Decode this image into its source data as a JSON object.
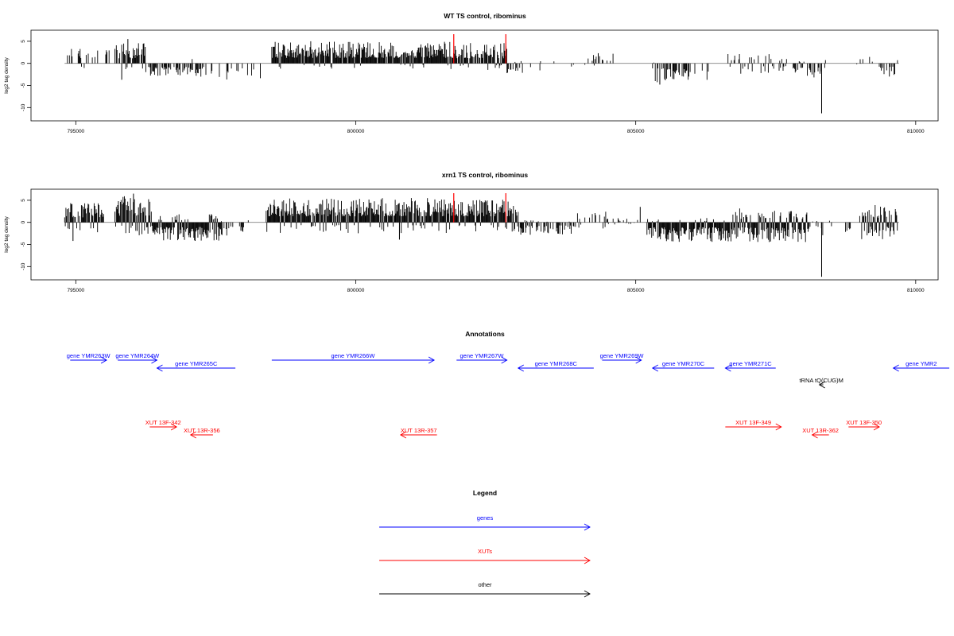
{
  "chart_data": [
    {
      "type": "bar",
      "title": "WT TS control, ribominus",
      "ylabel": "log2 tag density",
      "xlabel": "",
      "xlim": [
        794200,
        810400
      ],
      "ylim": [
        -13,
        7.5
      ],
      "x_ticks": [
        795000,
        800000,
        805000,
        810000
      ],
      "y_ticks": [
        -10,
        -5,
        0,
        5
      ],
      "baseline_extent": [
        794800,
        809700
      ],
      "grid": false,
      "highlight_color": "#ff0000",
      "bar_color": "#000000",
      "highlights": [
        {
          "x": 801750,
          "value": 6.6
        },
        {
          "x": 802680,
          "value": 6.6
        }
      ],
      "notable_bars": [
        {
          "x": 808320,
          "value": -11.3
        },
        {
          "x": 795930,
          "value": 5.5
        },
        {
          "x": 795820,
          "value": -3.7
        },
        {
          "x": 804330,
          "value": 2.3
        },
        {
          "x": 805430,
          "value": -4.8
        }
      ],
      "segments": [
        {
          "from": 794850,
          "to": 795620,
          "density": 0.35,
          "up_max": 3.4,
          "down_max": 1.4,
          "up_bias": 0.9
        },
        {
          "from": 795700,
          "to": 796250,
          "density": 0.8,
          "up_max": 4.6,
          "down_max": 3.2,
          "up_bias": 0.85
        },
        {
          "from": 796250,
          "to": 797300,
          "density": 0.55,
          "up_max": 1.0,
          "down_max": 3.2,
          "up_bias": 0.1
        },
        {
          "from": 797300,
          "to": 798300,
          "density": 0.25,
          "up_max": 0.5,
          "down_max": 3.8,
          "up_bias": 0.05
        },
        {
          "from": 798500,
          "to": 801700,
          "density": 0.95,
          "up_max": 5.0,
          "down_max": 1.2,
          "up_bias": 0.95
        },
        {
          "from": 801700,
          "to": 802700,
          "density": 0.9,
          "up_max": 4.6,
          "down_max": 1.5,
          "up_bias": 0.9
        },
        {
          "from": 802700,
          "to": 803300,
          "density": 0.3,
          "up_max": 0.8,
          "down_max": 2.5,
          "up_bias": 0.15
        },
        {
          "from": 803300,
          "to": 804100,
          "density": 0.1,
          "up_max": 0.5,
          "down_max": 1.2,
          "up_bias": 0.2
        },
        {
          "from": 804150,
          "to": 804600,
          "density": 0.2,
          "up_max": 2.2,
          "down_max": 0.5,
          "up_bias": 0.9
        },
        {
          "from": 805300,
          "to": 806300,
          "density": 0.4,
          "up_max": 0.6,
          "down_max": 4.5,
          "up_bias": 0.05
        },
        {
          "from": 806600,
          "to": 807800,
          "density": 0.35,
          "up_max": 2.2,
          "down_max": 2.5,
          "up_bias": 0.5
        },
        {
          "from": 807800,
          "to": 808400,
          "density": 0.5,
          "up_max": 1.2,
          "down_max": 3.8,
          "up_bias": 0.2
        },
        {
          "from": 808900,
          "to": 809250,
          "density": 0.15,
          "up_max": 1.5,
          "down_max": 0.3,
          "up_bias": 0.9
        },
        {
          "from": 809350,
          "to": 809700,
          "density": 0.4,
          "up_max": 1.0,
          "down_max": 3.0,
          "up_bias": 0.2
        }
      ]
    },
    {
      "type": "bar",
      "title": "xrn1 TS control, ribominus",
      "ylabel": "log2 tag density",
      "xlabel": "",
      "xlim": [
        794200,
        810400
      ],
      "ylim": [
        -13,
        7.5
      ],
      "x_ticks": [
        795000,
        800000,
        805000,
        810000
      ],
      "y_ticks": [
        -10,
        -5,
        0,
        5
      ],
      "baseline_extent": [
        794800,
        809700
      ],
      "grid": false,
      "highlight_color": "#ff0000",
      "bar_color": "#000000",
      "highlights": [
        {
          "x": 801750,
          "value": 6.6
        },
        {
          "x": 802680,
          "value": 6.6
        }
      ],
      "notable_bars": [
        {
          "x": 808320,
          "value": -12.3
        },
        {
          "x": 794950,
          "value": -4.2
        },
        {
          "x": 800780,
          "value": -3.9
        },
        {
          "x": 805080,
          "value": 3.5
        },
        {
          "x": 796030,
          "value": 6.5
        }
      ],
      "segments": [
        {
          "from": 794800,
          "to": 795500,
          "density": 0.8,
          "up_max": 4.5,
          "down_max": 2.5,
          "up_bias": 0.85
        },
        {
          "from": 795700,
          "to": 796400,
          "density": 1.0,
          "up_max": 6.0,
          "down_max": 3.0,
          "up_bias": 0.7
        },
        {
          "from": 796400,
          "to": 797600,
          "density": 1.0,
          "up_max": 2.0,
          "down_max": 4.2,
          "up_bias": 0.15
        },
        {
          "from": 797600,
          "to": 798100,
          "density": 0.4,
          "up_max": 1.0,
          "down_max": 3.0,
          "up_bias": 0.2
        },
        {
          "from": 798400,
          "to": 802900,
          "density": 1.0,
          "up_max": 5.5,
          "down_max": 2.5,
          "up_bias": 0.85
        },
        {
          "from": 802900,
          "to": 803900,
          "density": 0.55,
          "up_max": 0.6,
          "down_max": 2.8,
          "up_bias": 0.1
        },
        {
          "from": 803900,
          "to": 804600,
          "density": 0.35,
          "up_max": 2.8,
          "down_max": 1.5,
          "up_bias": 0.5
        },
        {
          "from": 804600,
          "to": 805100,
          "density": 0.15,
          "up_max": 1.0,
          "down_max": 0.5,
          "up_bias": 0.5
        },
        {
          "from": 805200,
          "to": 806700,
          "density": 0.9,
          "up_max": 1.0,
          "down_max": 4.5,
          "up_bias": 0.08
        },
        {
          "from": 806700,
          "to": 808100,
          "density": 1.0,
          "up_max": 3.2,
          "down_max": 4.5,
          "up_bias": 0.35
        },
        {
          "from": 808100,
          "to": 808900,
          "density": 0.25,
          "up_max": 0.8,
          "down_max": 3.0,
          "up_bias": 0.2
        },
        {
          "from": 809000,
          "to": 809700,
          "density": 0.9,
          "up_max": 4.0,
          "down_max": 3.8,
          "up_bias": 0.4
        }
      ]
    },
    {
      "type": "annotation_track",
      "title": "Annotations",
      "xlim": [
        794200,
        810400
      ],
      "features": [
        {
          "label": "gene YMR263W",
          "start": 794900,
          "end": 795550,
          "strand": "+",
          "color": "#0000ff",
          "row": 0
        },
        {
          "label": "gene YMR264W",
          "start": 795750,
          "end": 796450,
          "strand": "+",
          "color": "#0000ff",
          "row": 0
        },
        {
          "label": "gene YMR265C",
          "start": 796450,
          "end": 797850,
          "strand": "-",
          "color": "#0000ff",
          "row": 1
        },
        {
          "label": "gene YMR266W",
          "start": 798500,
          "end": 801400,
          "strand": "+",
          "color": "#0000ff",
          "row": 0
        },
        {
          "label": "gene YMR267W",
          "start": 801800,
          "end": 802700,
          "strand": "+",
          "color": "#0000ff",
          "row": 0
        },
        {
          "label": "gene YMR268C",
          "start": 802900,
          "end": 804250,
          "strand": "-",
          "color": "#0000ff",
          "row": 1
        },
        {
          "label": "gene YMR269W",
          "start": 804400,
          "end": 805100,
          "strand": "+",
          "color": "#0000ff",
          "row": 0
        },
        {
          "label": "gene YMR270C",
          "start": 805300,
          "end": 806400,
          "strand": "-",
          "color": "#0000ff",
          "row": 1
        },
        {
          "label": "gene YMR271C",
          "start": 806600,
          "end": 807500,
          "strand": "-",
          "color": "#0000ff",
          "row": 1
        },
        {
          "label": "gene YMR2",
          "start": 809600,
          "end": 810600,
          "strand": "-",
          "color": "#0000ff",
          "row": 1
        },
        {
          "label": "tRNA tQ(CUG)M",
          "start": 808280,
          "end": 808350,
          "strand": "-",
          "color": "#000000",
          "row": 2
        },
        {
          "label": "XUT 13F-342",
          "start": 796320,
          "end": 796800,
          "strand": "+",
          "color": "#ff0000",
          "row": 3
        },
        {
          "label": "XUT 13R-356",
          "start": 797050,
          "end": 797450,
          "strand": "-",
          "color": "#ff0000",
          "row": 4
        },
        {
          "label": "XUT 13R-357",
          "start": 800800,
          "end": 801450,
          "strand": "-",
          "color": "#ff0000",
          "row": 4
        },
        {
          "label": "XUT 13F-349",
          "start": 806600,
          "end": 807600,
          "strand": "+",
          "color": "#ff0000",
          "row": 3
        },
        {
          "label": "XUT 13R-362",
          "start": 808150,
          "end": 808450,
          "strand": "-",
          "color": "#ff0000",
          "row": 4
        },
        {
          "label": "XUT 13F-350",
          "start": 808800,
          "end": 809350,
          "strand": "+",
          "color": "#ff0000",
          "row": 3
        }
      ]
    },
    {
      "type": "legend",
      "title": "Legend",
      "items": [
        {
          "label": "genes",
          "color": "#0000ff"
        },
        {
          "label": "XUTs",
          "color": "#ff0000"
        },
        {
          "label": "other",
          "color": "#000000"
        }
      ]
    }
  ]
}
